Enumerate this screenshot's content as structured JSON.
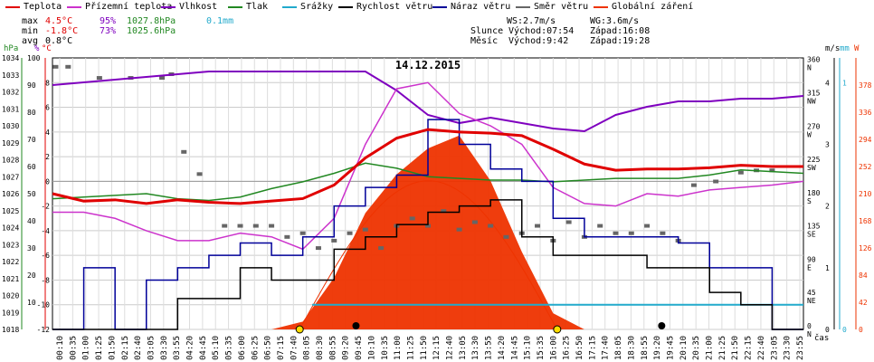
{
  "legend": [
    {
      "label": "Teplota",
      "color": "#e00000"
    },
    {
      "label": "Přízemní teplota",
      "color": "#cc33cc"
    },
    {
      "label": "Vlhkost",
      "color": "#7f00bf"
    },
    {
      "label": "Tlak",
      "color": "#228822"
    },
    {
      "label": "Srážky",
      "color": "#22aacc"
    },
    {
      "label": "Rychlost větru",
      "color": "#000000"
    },
    {
      "label": "Náraz větru",
      "color": "#000099"
    },
    {
      "label": "Směr větru",
      "color": "#666666"
    },
    {
      "label": "Globální záření",
      "color": "#ee3300"
    }
  ],
  "stats": {
    "max_label": "max",
    "max_temp": "4.5°C",
    "max_hum": "95%",
    "max_press": "1027.8hPa",
    "max_rain": "0.1mm",
    "min_label": "min",
    "min_temp": "-1.8°C",
    "min_hum": "73%",
    "min_press": "1025.6hPa",
    "avg_label": "avg",
    "avg_temp": "0.8°C"
  },
  "sun": {
    "ws": "WS:2.7m/s",
    "wg": "WG:3.6m/s",
    "sun_label": "Slunce",
    "sunrise": "Východ:07:54",
    "sunset": "Západ:16:08",
    "moon_label": "Měsíc",
    "moonrise": "Východ:9:42",
    "moonset": "Západ:19:28"
  },
  "chart_data": {
    "type": "line",
    "title": "14.12.2015",
    "xlabel": "čas",
    "x_ticks": [
      "00:10",
      "00:35",
      "01:00",
      "01:25",
      "01:50",
      "02:15",
      "02:40",
      "03:05",
      "03:30",
      "03:55",
      "04:20",
      "04:45",
      "05:10",
      "05:35",
      "06:00",
      "06:25",
      "06:50",
      "07:15",
      "07:40",
      "08:05",
      "08:30",
      "08:55",
      "09:20",
      "09:45",
      "10:10",
      "10:35",
      "11:00",
      "11:25",
      "11:50",
      "12:15",
      "12:40",
      "13:05",
      "13:30",
      "13:55",
      "14:20",
      "14:45",
      "15:10",
      "15:35",
      "16:00",
      "16:25",
      "16:50",
      "17:15",
      "17:40",
      "18:05",
      "18:30",
      "18:55",
      "19:20",
      "19:45",
      "20:10",
      "20:35",
      "21:00",
      "21:25",
      "21:50",
      "22:15",
      "22:40",
      "23:05",
      "23:30",
      "23:55"
    ],
    "axes": {
      "hpa": {
        "label": "hPa",
        "color": "#228822",
        "min": 1018,
        "max": 1034,
        "ticks": [
          1018,
          1019,
          1020,
          1021,
          1022,
          1023,
          1024,
          1025,
          1026,
          1027,
          1028,
          1029,
          1030,
          1031,
          1032,
          1033,
          1034
        ]
      },
      "pct": {
        "label": "%",
        "color": "#7f00bf",
        "min": 0,
        "max": 100,
        "ticks": [
          10,
          20,
          30,
          40,
          50,
          60,
          70,
          80,
          90,
          100
        ]
      },
      "temp": {
        "label": "°C",
        "color": "#e00000",
        "min": -12,
        "max": 10,
        "ticks": [
          -12,
          -10,
          -8,
          -6,
          -4,
          -2,
          0,
          2,
          4,
          6,
          8
        ]
      },
      "dir": {
        "ticks": [
          "0 N",
          "45 NE",
          "90 E",
          "135 SE",
          "180 S",
          "225 SW",
          "270 W",
          "315 NW",
          "360 N"
        ]
      },
      "ms": {
        "label": "m/s",
        "ticks": [
          0,
          1,
          2,
          3,
          4
        ]
      },
      "mm": {
        "label": "mm",
        "ticks": [
          0,
          1
        ]
      },
      "w": {
        "label": "W",
        "color": "#ee3300",
        "ticks": [
          0,
          42,
          84,
          126,
          168,
          210,
          252,
          294,
          336,
          378
        ]
      }
    },
    "hours": [
      0,
      1,
      2,
      3,
      4,
      5,
      6,
      7,
      8,
      9,
      10,
      11,
      12,
      13,
      14,
      15,
      16,
      17,
      18,
      19,
      20,
      21,
      22,
      23,
      24
    ],
    "series": [
      {
        "name": "Teplota",
        "axis": "temp",
        "color": "#e00000",
        "values": [
          -1.0,
          -1.6,
          -1.5,
          -1.8,
          -1.5,
          -1.7,
          -1.8,
          -1.6,
          -1.4,
          -0.3,
          1.9,
          3.5,
          4.2,
          4.0,
          3.9,
          3.7,
          2.6,
          1.4,
          0.9,
          1.0,
          1.0,
          1.1,
          1.3,
          1.2,
          1.2
        ]
      },
      {
        "name": "Přízemní teplota",
        "axis": "temp",
        "color": "#cc33cc",
        "values": [
          -2.5,
          -2.5,
          -3.0,
          -4.0,
          -4.8,
          -4.8,
          -4.2,
          -4.5,
          -5.5,
          -3.0,
          3.0,
          7.5,
          8.0,
          5.5,
          4.5,
          3.0,
          -0.5,
          -1.8,
          -2.0,
          -1.0,
          -1.2,
          -0.7,
          -0.5,
          -0.3,
          0.0
        ]
      },
      {
        "name": "Vlhkost",
        "axis": "pct",
        "color": "#7f00bf",
        "values": [
          90,
          91,
          92,
          93,
          94,
          95,
          95,
          95,
          95,
          95,
          95,
          88,
          79,
          76,
          78,
          76,
          74,
          73,
          79,
          82,
          84,
          84,
          85,
          85,
          86
        ]
      },
      {
        "name": "Tlak",
        "axis": "hpa",
        "color": "#228822",
        "values": [
          1025.7,
          1025.8,
          1025.9,
          1026.0,
          1025.7,
          1025.6,
          1025.8,
          1026.3,
          1026.7,
          1027.2,
          1027.8,
          1027.5,
          1027.0,
          1026.9,
          1026.8,
          1026.8,
          1026.7,
          1026.8,
          1026.9,
          1026.9,
          1026.9,
          1027.1,
          1027.4,
          1027.3,
          1027.2
        ]
      },
      {
        "name": "Globální záření",
        "axis": "w",
        "color": "#ee3300",
        "values": [
          0,
          0,
          0,
          0,
          0,
          0,
          0,
          0,
          12,
          80,
          180,
          240,
          280,
          300,
          230,
          120,
          25,
          0,
          0,
          0,
          0,
          0,
          0,
          0,
          0
        ]
      },
      {
        "name": "Rychlost větru",
        "axis": "ms",
        "color": "#000000",
        "values": [
          0,
          0,
          0,
          0,
          0.5,
          0.5,
          1.0,
          0.8,
          0.8,
          1.3,
          1.5,
          1.7,
          1.9,
          2.0,
          2.1,
          1.5,
          1.2,
          1.2,
          1.2,
          1.0,
          1.0,
          0.6,
          0.4,
          0,
          0
        ]
      },
      {
        "name": "Náraz větru",
        "axis": "ms",
        "color": "#000099",
        "values": [
          0,
          1.0,
          0,
          0.8,
          1.0,
          1.2,
          1.4,
          1.2,
          1.5,
          2.0,
          2.3,
          2.5,
          3.4,
          3.0,
          2.6,
          2.4,
          1.8,
          1.5,
          1.5,
          1.5,
          1.4,
          1.0,
          1.0,
          0,
          0
        ]
      }
    ],
    "wind_direction": {
      "name": "Směr větru",
      "axis": "dir",
      "color": "#666666",
      "points": [
        [
          0.1,
          355
        ],
        [
          0.5,
          355
        ],
        [
          1.5,
          340
        ],
        [
          2.5,
          340
        ],
        [
          3.5,
          340
        ],
        [
          3.8,
          345
        ],
        [
          4.2,
          240
        ],
        [
          4.7,
          210
        ],
        [
          5.5,
          140
        ],
        [
          6.0,
          140
        ],
        [
          6.5,
          140
        ],
        [
          7.0,
          140
        ],
        [
          7.5,
          125
        ],
        [
          8.0,
          130
        ],
        [
          8.5,
          110
        ],
        [
          9.0,
          120
        ],
        [
          9.5,
          130
        ],
        [
          10.0,
          135
        ],
        [
          10.5,
          110
        ],
        [
          11.0,
          140
        ],
        [
          11.5,
          150
        ],
        [
          12.0,
          140
        ],
        [
          12.5,
          160
        ],
        [
          13.0,
          135
        ],
        [
          13.5,
          145
        ],
        [
          14.0,
          140
        ],
        [
          14.5,
          125
        ],
        [
          15.0,
          130
        ],
        [
          15.5,
          140
        ],
        [
          16.0,
          120
        ],
        [
          16.5,
          145
        ],
        [
          17.0,
          125
        ],
        [
          17.5,
          140
        ],
        [
          18.0,
          130
        ],
        [
          18.5,
          130
        ],
        [
          19.0,
          140
        ],
        [
          19.5,
          130
        ],
        [
          20.0,
          120
        ],
        [
          20.5,
          195
        ],
        [
          21.2,
          200
        ],
        [
          22.0,
          212
        ],
        [
          22.5,
          215
        ],
        [
          23.0,
          215
        ]
      ]
    },
    "precipitation": {
      "name": "Srážky",
      "axis": "mm",
      "color": "#22aacc",
      "from_hour": 8.3,
      "to_hour": 24,
      "value": 0.1
    },
    "grid": true
  }
}
